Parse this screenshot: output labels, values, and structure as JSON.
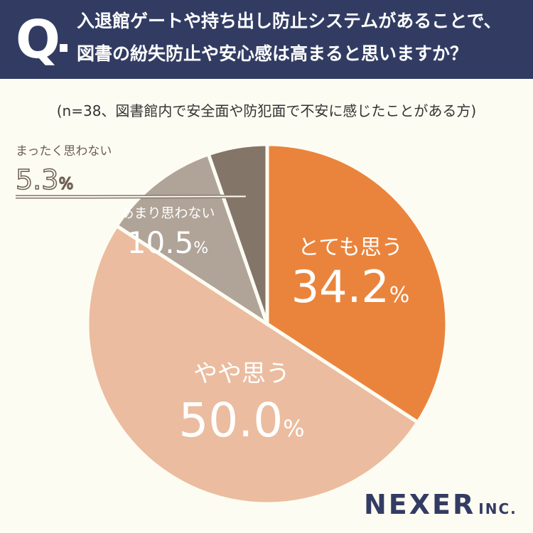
{
  "header": {
    "q_letter": "Q",
    "question_line1": "入退館ゲートや持ち出し防止システムがあることで、",
    "question_line2": "図書の紛失防止や安心感は高まると思いますか？"
  },
  "note": "(n=38、図書館内で安全面や防犯面で不安に感じたことがある方)",
  "brand": {
    "name": "NEXER",
    "suffix": "INC."
  },
  "colors": {
    "header_bg": "#323c63",
    "background": "#fdfcf2",
    "slice_1": "#ea843c",
    "slice_2": "#ebbc9f",
    "slice_3": "#b0a398",
    "slice_4": "#847569"
  },
  "chart_data": {
    "type": "pie",
    "start": "12 o'clock, clockwise",
    "slices": [
      {
        "label": "とても思う",
        "value": 34.2,
        "display": "34.2",
        "unit": "%",
        "color": "#ea843c"
      },
      {
        "label": "やや思う",
        "value": 50.0,
        "display": "50.0",
        "unit": "%",
        "color": "#ebbc9f"
      },
      {
        "label": "あまり思わない",
        "value": 10.5,
        "display": "10.5",
        "unit": "%",
        "color": "#b0a398"
      },
      {
        "label": "まったく思わない",
        "value": 5.3,
        "display": "5.3",
        "unit": "%",
        "color": "#847569"
      }
    ]
  }
}
